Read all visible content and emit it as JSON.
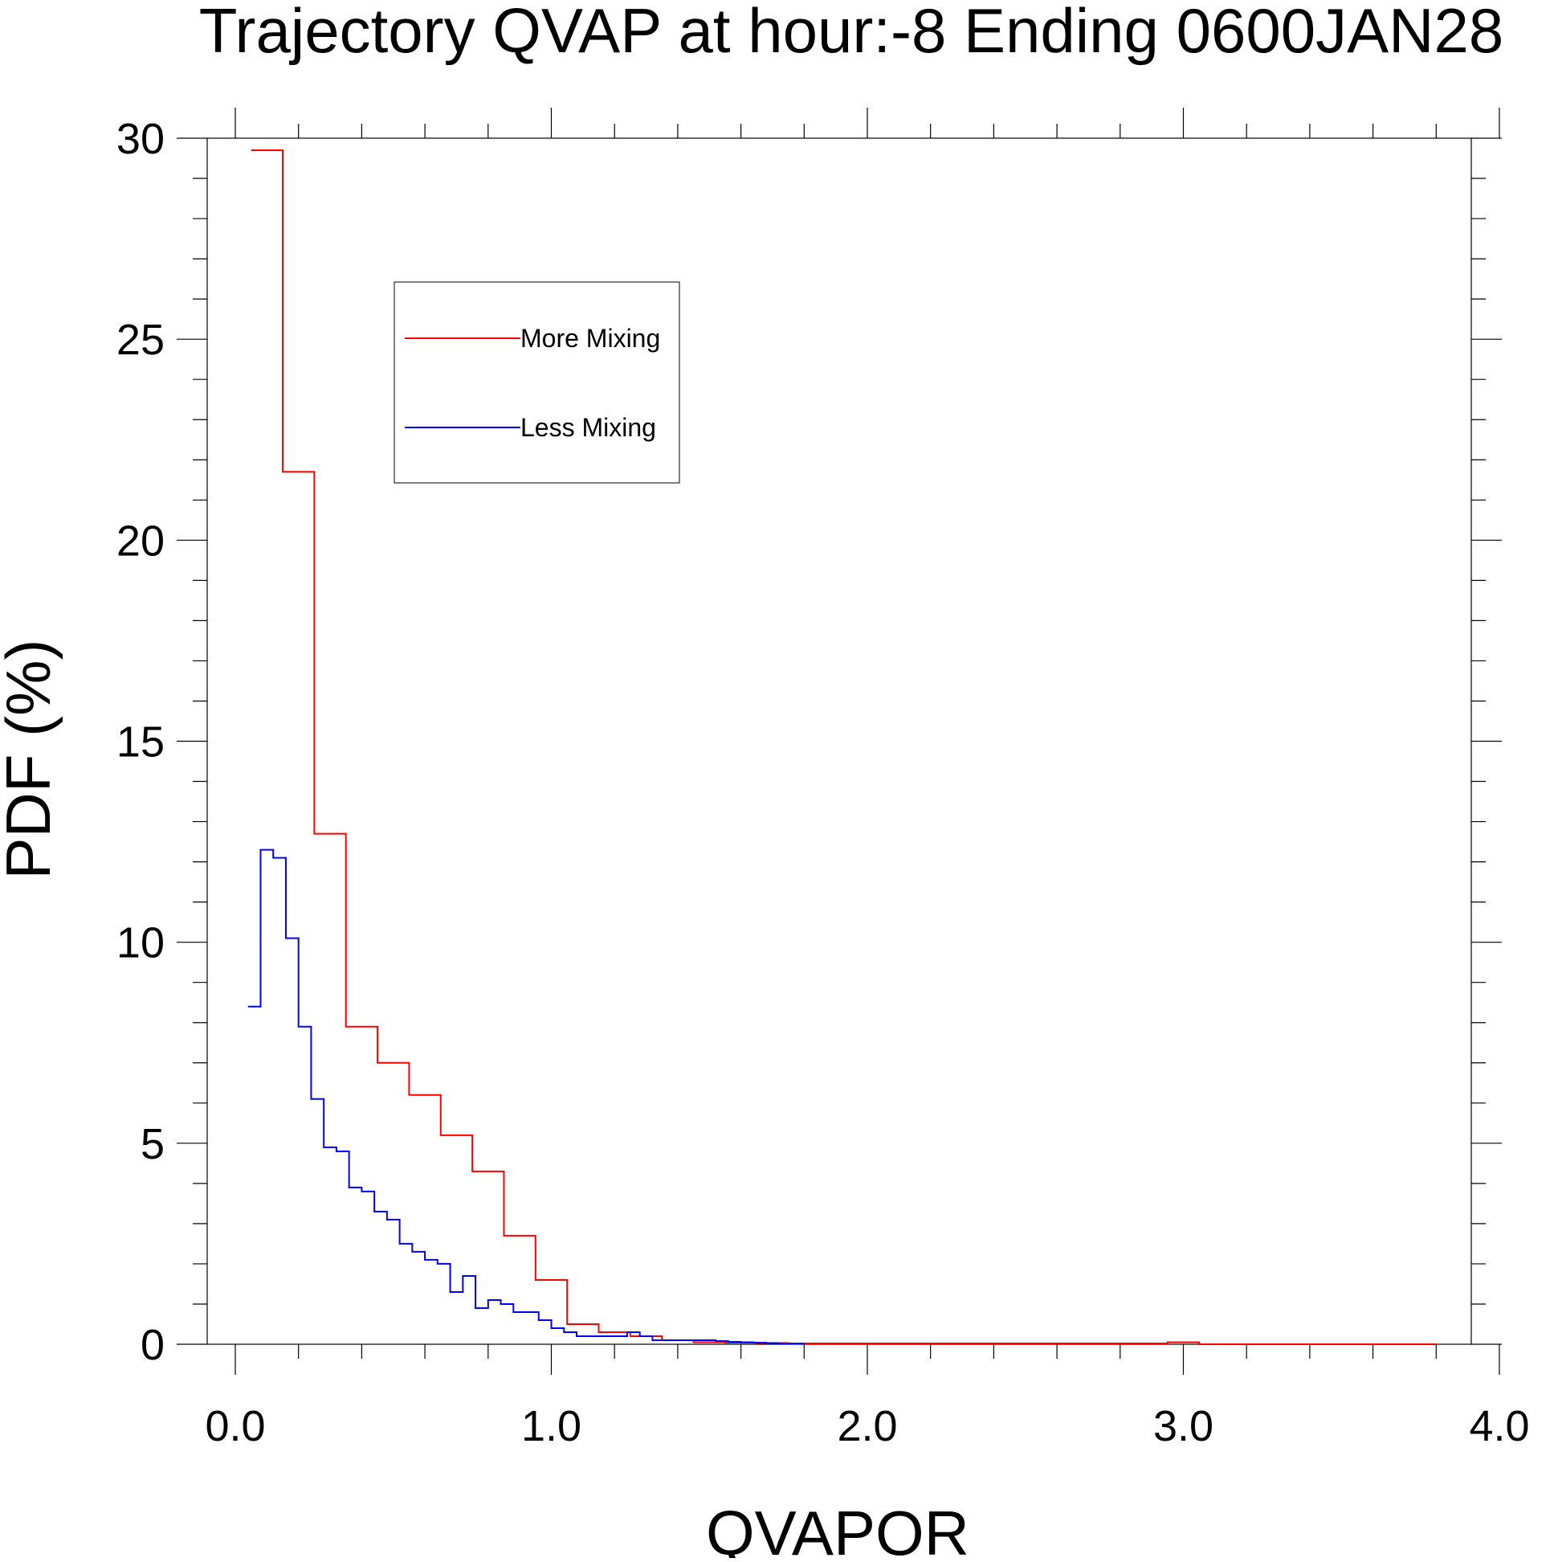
{
  "chart_data": {
    "type": "line",
    "step": true,
    "title": "Trajectory QVAP at hour:-8 Ending 0600JAN28",
    "xlabel": "QVAPOR",
    "ylabel": "PDF (%)",
    "xlim": [
      0.0,
      4.0
    ],
    "ylim": [
      0,
      30
    ],
    "x_ticks": [
      "0.0",
      "1.0",
      "2.0",
      "3.0",
      "4.0"
    ],
    "y_ticks": [
      "0",
      "5",
      "10",
      "15",
      "20",
      "25",
      "30"
    ],
    "grid": false,
    "legend_position": "top-left",
    "series": [
      {
        "name": "More Mixing",
        "color": "#ff0000",
        "x": [
          0.05,
          0.15,
          0.25,
          0.35,
          0.45,
          0.55,
          0.65,
          0.75,
          0.85,
          0.95,
          1.05,
          1.15,
          1.25,
          1.35,
          1.45,
          1.55,
          1.65,
          1.75,
          2.95,
          3.05
        ],
        "y": [
          29.7,
          21.7,
          12.7,
          7.9,
          7.0,
          6.2,
          5.2,
          4.3,
          2.7,
          1.6,
          0.5,
          0.3,
          0.2,
          0.1,
          0.05,
          0.04,
          0.03,
          0.02,
          0.05,
          0.0
        ],
        "x_end": 3.8
      },
      {
        "name": "Less Mixing",
        "color": "#0000ff",
        "x": [
          0.04,
          0.08,
          0.12,
          0.16,
          0.2,
          0.24,
          0.28,
          0.32,
          0.36,
          0.4,
          0.44,
          0.48,
          0.52,
          0.56,
          0.6,
          0.64,
          0.68,
          0.72,
          0.76,
          0.8,
          0.84,
          0.88,
          0.92,
          0.96,
          1.0,
          1.04,
          1.08,
          1.12,
          1.16,
          1.2,
          1.24,
          1.28,
          1.32,
          1.36,
          1.4,
          1.44,
          1.48,
          1.52,
          1.56,
          1.6,
          1.64,
          1.68,
          1.72,
          1.76
        ],
        "y": [
          8.4,
          12.3,
          12.1,
          10.1,
          7.9,
          6.1,
          4.9,
          4.8,
          3.9,
          3.8,
          3.3,
          3.1,
          2.5,
          2.3,
          2.1,
          2.0,
          1.3,
          1.7,
          0.9,
          1.1,
          1.0,
          0.8,
          0.8,
          0.6,
          0.4,
          0.3,
          0.2,
          0.2,
          0.2,
          0.2,
          0.3,
          0.2,
          0.1,
          0.1,
          0.1,
          0.1,
          0.1,
          0.08,
          0.06,
          0.05,
          0.04,
          0.03,
          0.02,
          0.01
        ],
        "x_end": 1.8
      }
    ]
  }
}
